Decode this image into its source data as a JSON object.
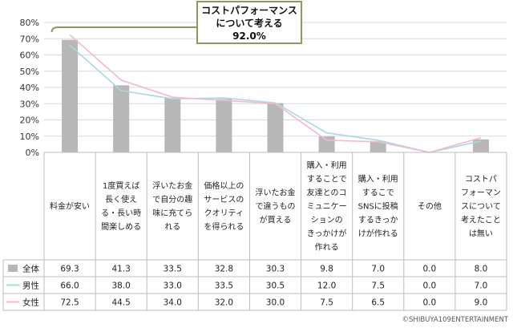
{
  "chart_data": {
    "type": "bar",
    "y_ticks": [
      "0%",
      "10%",
      "20%",
      "30%",
      "40%",
      "50%",
      "60%",
      "70%",
      "80%"
    ],
    "ylim": [
      0,
      80
    ],
    "grid": true,
    "categories": [
      [
        "料金が安い"
      ],
      [
        "1度買えば",
        "長く使え",
        "る・長い時",
        "間楽しめる"
      ],
      [
        "浮いたお金",
        "で自分の趣",
        "味に充てら",
        "れる"
      ],
      [
        "価格以上の",
        "サービスの",
        "クオリティ",
        "を得られる"
      ],
      [
        "浮いたお金",
        "で違うもの",
        "が買える"
      ],
      [
        "購入・利用",
        "することで",
        "友達とのコ",
        "ミュニケー",
        "ションの",
        "きっかけが",
        "作れる"
      ],
      [
        "購入・利用",
        "するこで",
        "SNSに投稿",
        "するきっか",
        "けが作れる"
      ],
      [
        "その他"
      ],
      [
        "コストパ",
        "フォーマン",
        "スについて",
        "考えたこと",
        "は無い"
      ]
    ],
    "series": [
      {
        "name": "全体",
        "type": "bar",
        "color": "#b7b7b7",
        "values": [
          69.3,
          41.3,
          33.5,
          32.8,
          30.3,
          9.8,
          7.0,
          0.0,
          8.0
        ],
        "labels": [
          "69.3",
          "41.3",
          "33.5",
          "32.8",
          "30.3",
          "9.8",
          "7.0",
          "0.0",
          "8.0"
        ]
      },
      {
        "name": "男性",
        "type": "line",
        "color": "#a9d9e0",
        "values": [
          66.0,
          38.0,
          33.0,
          33.5,
          30.5,
          12.0,
          7.5,
          0.0,
          7.0
        ],
        "labels": [
          "66.0",
          "38.0",
          "33.0",
          "33.5",
          "30.5",
          "12.0",
          "7.5",
          "0.0",
          "7.0"
        ]
      },
      {
        "name": "女性",
        "type": "line",
        "color": "#f4b8cf",
        "values": [
          72.5,
          44.5,
          34.0,
          32.0,
          30.0,
          7.5,
          6.5,
          0.0,
          9.0
        ],
        "labels": [
          "72.5",
          "44.5",
          "34.0",
          "32.0",
          "30.0",
          "7.5",
          "6.5",
          "0.0",
          "9.0"
        ]
      }
    ],
    "annotation": {
      "lines": [
        "コストパフォーマンス",
        "について考える",
        "92.0%"
      ]
    },
    "copyright": "©SHIBUYA109ENTERTAINMENT"
  }
}
